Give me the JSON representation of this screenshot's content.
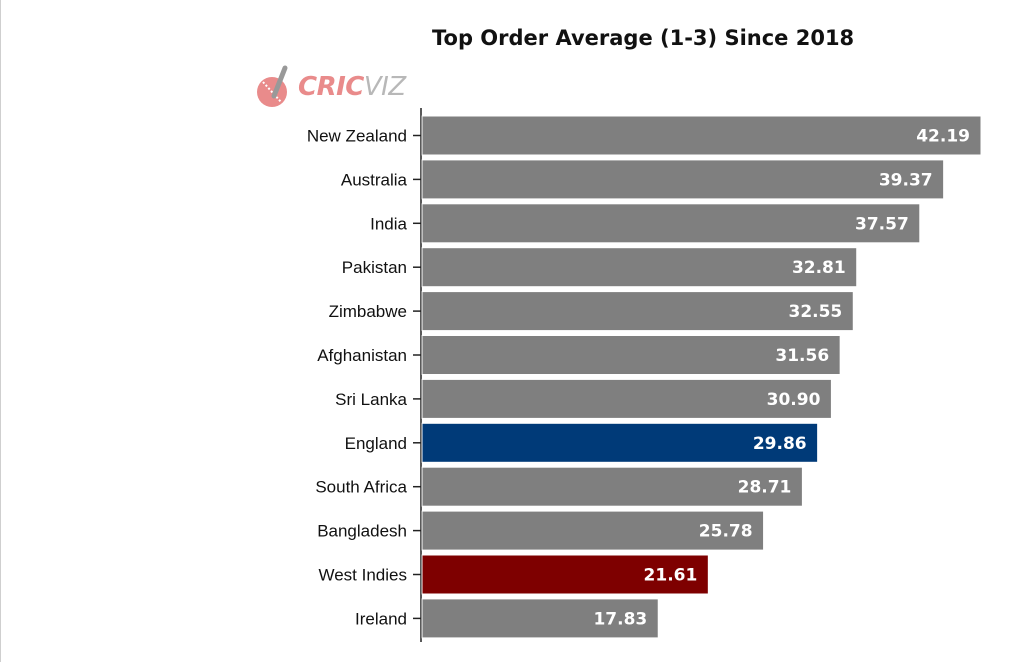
{
  "logo": {
    "text_a": "CRIC",
    "text_b": "VIZ"
  },
  "chart_data": {
    "type": "bar",
    "orientation": "horizontal",
    "title": "Top Order Average (1-3) Since 2018",
    "xlabel": "",
    "ylabel": "",
    "categories": [
      "New Zealand",
      "Australia",
      "India",
      "Pakistan",
      "Zimbabwe",
      "Afghanistan",
      "Sri Lanka",
      "England",
      "South Africa",
      "Bangladesh",
      "West Indies",
      "Ireland"
    ],
    "values": [
      42.19,
      39.37,
      37.57,
      32.81,
      32.55,
      31.56,
      30.9,
      29.86,
      28.71,
      25.78,
      21.61,
      17.83
    ],
    "value_labels": [
      "42.19",
      "39.37",
      "37.57",
      "32.81",
      "32.55",
      "31.56",
      "30.90",
      "29.86",
      "28.71",
      "25.78",
      "21.61",
      "17.83"
    ],
    "colors": [
      "#7f7f7f",
      "#7f7f7f",
      "#7f7f7f",
      "#7f7f7f",
      "#7f7f7f",
      "#7f7f7f",
      "#7f7f7f",
      "#003a78",
      "#7f7f7f",
      "#7f7f7f",
      "#7e0000",
      "#7f7f7f"
    ],
    "xlim": [
      0,
      42.19
    ],
    "grid": false,
    "legend": "none"
  }
}
